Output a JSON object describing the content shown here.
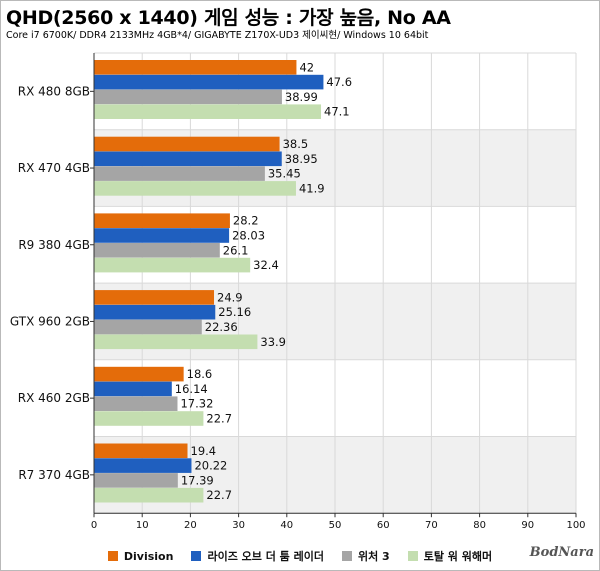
{
  "title": "QHD(2560 x 1440) 게임 성능 : 가장 높음, No AA",
  "subtitle": "Core i7 6700K/ DDR4 2133MHz 4GB*4/ GIGABYTE Z170X-UD3 제이씨현/ Windows 10 64bit",
  "logo": "BodNara",
  "colors": {
    "Division": "#e46c0a",
    "rise": "#1f5fbf",
    "witcher": "#a5a5a5",
    "warhammer": "#c4deb0",
    "band": "#f0f0f0",
    "grid": "#d9d9d9"
  },
  "chart_data": {
    "type": "bar",
    "orientation": "horizontal",
    "title": "QHD(2560 x 1440) 게임 성능 : 가장 높음, No AA",
    "subtitle": "Core i7 6700K/ DDR4 2133MHz 4GB*4/ GIGABYTE Z170X-UD3 제이씨현/ Windows 10 64bit",
    "categories": [
      "RX 480 8GB",
      "RX 470 4GB",
      "R9 380 4GB",
      "GTX 960 2GB",
      "RX 460 2GB",
      "R7 370 4GB"
    ],
    "series": [
      {
        "name": "Division",
        "color": "#e46c0a",
        "values": [
          42,
          38.5,
          28.2,
          24.9,
          18.6,
          19.4
        ],
        "labels": [
          "42",
          "38.5",
          "28.2",
          "24.9",
          "18.6",
          "19.4"
        ]
      },
      {
        "name": "라이즈 오브 더 툼 레이더",
        "color": "#1f5fbf",
        "values": [
          47.6,
          38.95,
          28.03,
          25.16,
          16.14,
          20.22
        ],
        "labels": [
          "47.6",
          "38.95",
          "28.03",
          "25.16",
          "16.14",
          "20.22"
        ]
      },
      {
        "name": "위처 3",
        "color": "#a5a5a5",
        "values": [
          38.99,
          35.45,
          26.1,
          22.36,
          17.32,
          17.39
        ],
        "labels": [
          "38.99",
          "35.45",
          "26.1",
          "22.36",
          "17.32",
          "17.39"
        ]
      },
      {
        "name": "토탈 워 워해머",
        "color": "#c4deb0",
        "values": [
          47.1,
          41.9,
          32.4,
          33.9,
          22.7,
          22.7
        ],
        "labels": [
          "47.1",
          "41.9",
          "32.4",
          "33.9",
          "22.7",
          "22.7"
        ]
      }
    ],
    "xlim": [
      0,
      100
    ],
    "xticks": [
      0,
      10,
      20,
      30,
      40,
      50,
      60,
      70,
      80,
      90,
      100
    ],
    "grid": true,
    "legend_position": "bottom"
  }
}
